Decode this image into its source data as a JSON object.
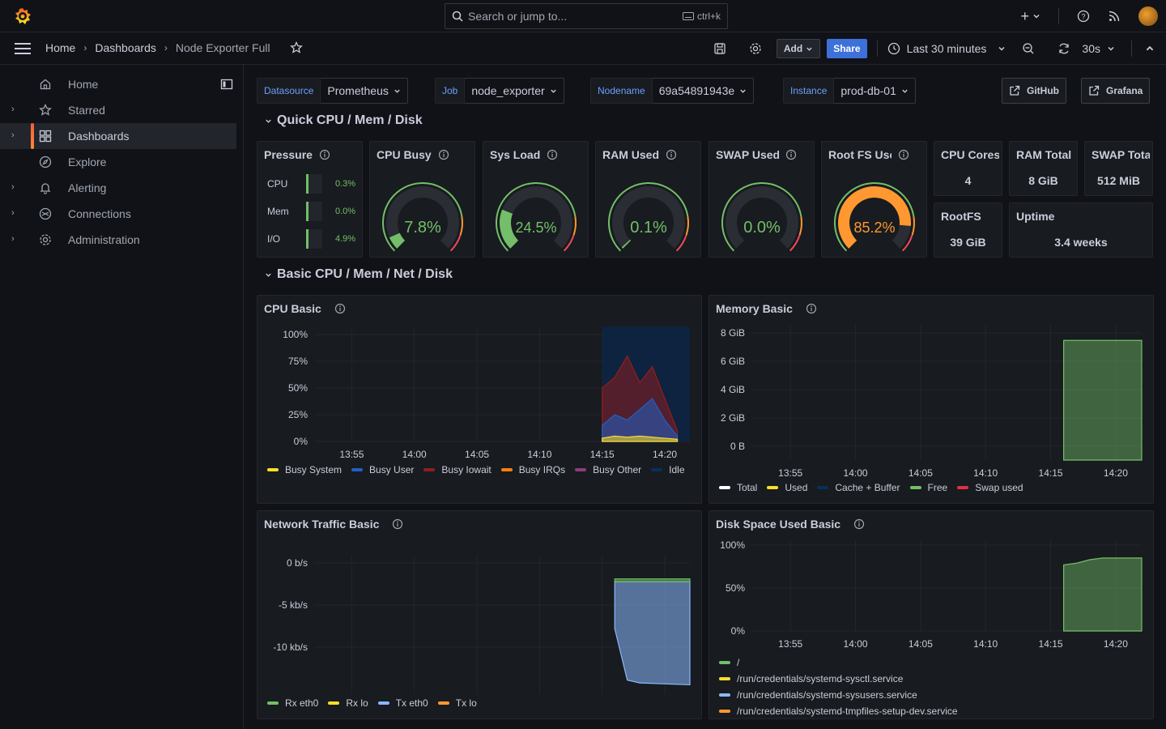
{
  "topbar": {
    "search_placeholder": "Search or jump to...",
    "search_shortcut": "ctrl+k"
  },
  "breadcrumb": {
    "home": "Home",
    "dashboards": "Dashboards",
    "current": "Node Exporter Full"
  },
  "actions": {
    "add_label": "Add",
    "share_label": "Share",
    "time_range": "Last 30 minutes",
    "refresh_interval": "30s"
  },
  "sidebar": {
    "items": [
      {
        "label": "Home",
        "icon": "home-icon"
      },
      {
        "label": "Starred",
        "icon": "star-icon"
      },
      {
        "label": "Dashboards",
        "icon": "dashboards-icon"
      },
      {
        "label": "Explore",
        "icon": "compass-icon"
      },
      {
        "label": "Alerting",
        "icon": "bell-icon"
      },
      {
        "label": "Connections",
        "icon": "connections-icon"
      },
      {
        "label": "Administration",
        "icon": "gear-icon"
      }
    ]
  },
  "variables": {
    "datasource": {
      "label": "Datasource",
      "value": "Prometheus"
    },
    "job": {
      "label": "Job",
      "value": "node_exporter"
    },
    "nodename": {
      "label": "Nodename",
      "value": "69a54891943e"
    },
    "instance": {
      "label": "Instance",
      "value": "prod-db-01"
    }
  },
  "links": {
    "github": "GitHub",
    "grafana": "Grafana"
  },
  "rows": {
    "quick": "Quick CPU / Mem / Disk",
    "basic": "Basic CPU / Mem / Net / Disk"
  },
  "stats": {
    "pressure": {
      "title": "Pressure",
      "rows": [
        {
          "label": "CPU",
          "value": "0.3%"
        },
        {
          "label": "Mem",
          "value": "0.0%"
        },
        {
          "label": "I/O",
          "value": "4.9%"
        }
      ]
    },
    "gauges": [
      {
        "title": "CPU Busy",
        "value": "7.8%",
        "fraction": 0.078,
        "color": "#73bf69"
      },
      {
        "title": "Sys Load",
        "value": "24.5%",
        "fraction": 0.245,
        "color": "#73bf69"
      },
      {
        "title": "RAM Used",
        "value": "0.1%",
        "fraction": 0.001,
        "color": "#73bf69"
      },
      {
        "title": "SWAP Used",
        "value": "0.0%",
        "fraction": 0.0,
        "color": "#73bf69"
      },
      {
        "title": "Root FS Used",
        "value": "85.2%",
        "fraction": 0.852,
        "color": "#ff9830"
      }
    ],
    "cpu_cores": {
      "title": "CPU Cores",
      "value": "4"
    },
    "ram_total": {
      "title": "RAM Total",
      "value": "8 GiB"
    },
    "swap_total": {
      "title": "SWAP Total",
      "value": "512 MiB"
    },
    "rootfs": {
      "title": "RootFS",
      "value": "39 GiB"
    },
    "uptime": {
      "title": "Uptime",
      "value": "3.4 weeks"
    }
  },
  "panels": {
    "cpu_basic": {
      "title": "CPU Basic",
      "legend": [
        {
          "name": "Busy System",
          "color": "#fade2a"
        },
        {
          "name": "Busy User",
          "color": "#1f60c4"
        },
        {
          "name": "Busy Iowait",
          "color": "#8f1e1e"
        },
        {
          "name": "Busy IRQs",
          "color": "#ff7f0e"
        },
        {
          "name": "Busy Other",
          "color": "#8e3a7f"
        },
        {
          "name": "Idle",
          "color": "#0a2e5c"
        }
      ]
    },
    "memory_basic": {
      "title": "Memory Basic",
      "legend": [
        {
          "name": "Total",
          "color": "#ffffff"
        },
        {
          "name": "Used",
          "color": "#fade2a"
        },
        {
          "name": "Cache + Buffer",
          "color": "#0a2e5c"
        },
        {
          "name": "Free",
          "color": "#73bf69"
        },
        {
          "name": "Swap used",
          "color": "#e02f44"
        }
      ]
    },
    "network_basic": {
      "title": "Network Traffic Basic",
      "legend": [
        {
          "name": "Rx eth0",
          "color": "#73bf69"
        },
        {
          "name": "Rx lo",
          "color": "#fade2a"
        },
        {
          "name": "Tx eth0",
          "color": "#8ab8ff"
        },
        {
          "name": "Tx lo",
          "color": "#ff9830"
        }
      ]
    },
    "disk_basic": {
      "title": "Disk Space Used Basic",
      "legend": [
        {
          "name": "/",
          "color": "#73bf69"
        },
        {
          "name": "/run/credentials/systemd-sysctl.service",
          "color": "#fade2a"
        },
        {
          "name": "/run/credentials/systemd-sysusers.service",
          "color": "#8ab8ff"
        },
        {
          "name": "/run/credentials/systemd-tmpfiles-setup-dev.service",
          "color": "#ff9830"
        }
      ]
    }
  },
  "chart_data": [
    {
      "type": "area",
      "title": "CPU Basic",
      "x": [
        "13:55",
        "14:00",
        "14:05",
        "14:10",
        "14:15",
        "14:20"
      ],
      "y_ticks": [
        "100%",
        "75%",
        "50%",
        "25%",
        "0%"
      ],
      "ylim": [
        0,
        100
      ],
      "series": [
        {
          "name": "Busy Iowait",
          "x": [
            "14:15",
            "14:16",
            "14:17",
            "14:18",
            "14:19",
            "14:20",
            "14:21"
          ],
          "values": [
            50,
            60,
            80,
            55,
            70,
            40,
            10
          ]
        },
        {
          "name": "Busy User",
          "x": [
            "14:15",
            "14:16",
            "14:17",
            "14:18",
            "14:19",
            "14:20",
            "14:21"
          ],
          "values": [
            15,
            25,
            20,
            30,
            40,
            20,
            5
          ]
        },
        {
          "name": "Busy System",
          "x": [
            "14:15",
            "14:16",
            "14:17",
            "14:18",
            "14:19",
            "14:20",
            "14:21"
          ],
          "values": [
            3,
            5,
            4,
            5,
            4,
            3,
            2
          ]
        }
      ]
    },
    {
      "type": "area",
      "title": "Memory Basic",
      "x": [
        "13:55",
        "14:00",
        "14:05",
        "14:10",
        "14:15",
        "14:20"
      ],
      "y_ticks": [
        "8 GiB",
        "6 GiB",
        "4 GiB",
        "2 GiB",
        "0 B"
      ],
      "ylim": [
        0,
        8.5
      ],
      "series": [
        {
          "name": "Free",
          "x": [
            "14:16",
            "14:22"
          ],
          "values": [
            8,
            8
          ]
        }
      ]
    },
    {
      "type": "area",
      "title": "Network Traffic Basic",
      "x": [
        "13:55",
        "14:00",
        "14:05",
        "14:10",
        "14:15",
        "14:20"
      ],
      "y_ticks": [
        "0 b/s",
        "-5 kb/s",
        "-10 kb/s"
      ],
      "ylim": [
        -12,
        2
      ],
      "series": [
        {
          "name": "Tx eth0",
          "x": [
            "14:16",
            "14:17",
            "14:18",
            "14:22"
          ],
          "values": [
            -5,
            -10.5,
            -10.8,
            -11
          ]
        },
        {
          "name": "Rx eth0",
          "x": [
            "14:16",
            "14:22"
          ],
          "values": [
            0.3,
            0.3
          ]
        }
      ]
    },
    {
      "type": "area",
      "title": "Disk Space Used Basic",
      "x": [
        "13:55",
        "14:00",
        "14:05",
        "14:10",
        "14:15",
        "14:20"
      ],
      "y_ticks": [
        "100%",
        "50%",
        "0%"
      ],
      "ylim": [
        0,
        100
      ],
      "series": [
        {
          "name": "/",
          "x": [
            "14:16",
            "14:17",
            "14:18",
            "14:19",
            "14:22"
          ],
          "values": [
            77,
            79,
            83,
            85,
            85
          ]
        }
      ]
    }
  ]
}
